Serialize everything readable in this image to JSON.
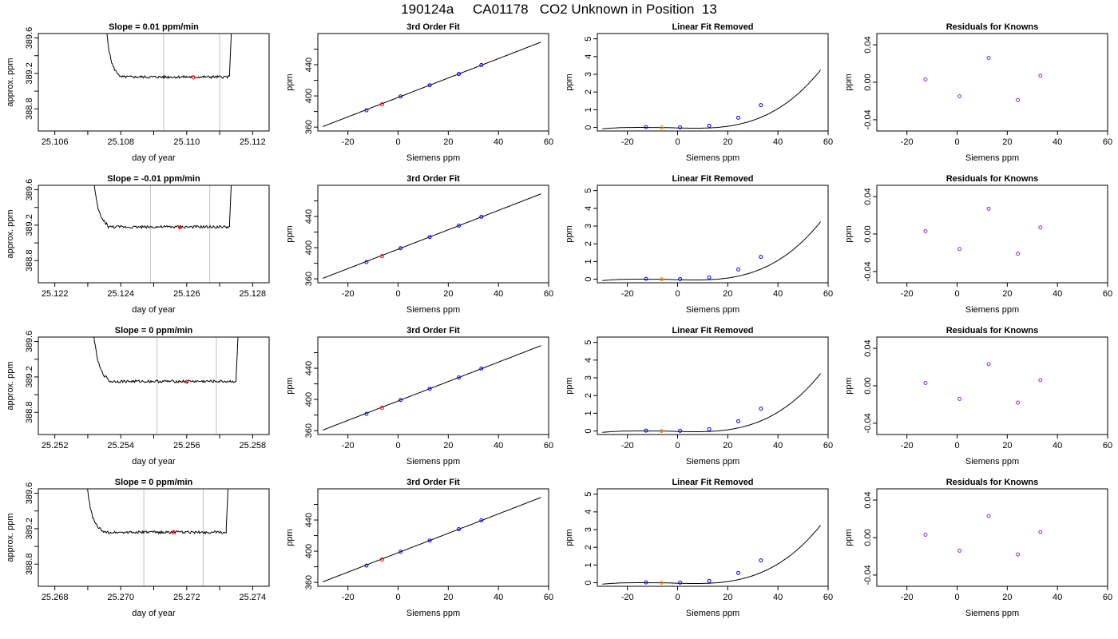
{
  "title": "190124a     CA01178   CO2 Unknown in Position  13",
  "colors": {
    "curve": "#000000",
    "vline": "#c0c0c0",
    "known": "#0000ff",
    "unknown": "#ff0000",
    "unknown_lin": "#ff8c00",
    "resid": "#8a2be2"
  },
  "chart_data": [
    {
      "type": "line",
      "row": 0,
      "col": 0,
      "title": "Slope =  0.01  ppm/min",
      "xlabel": "day of year",
      "ylabel": "approx. ppm",
      "xlim": [
        25.1055,
        25.1125
      ],
      "ylim": [
        388.55,
        389.65
      ],
      "xticks": [
        "25.106",
        "25.108",
        "25.110",
        "25.112"
      ],
      "yticks": [
        "388.8",
        "389.2",
        "389.6"
      ],
      "vlines": [
        25.1093,
        25.111
      ],
      "marker": {
        "x": 25.1102,
        "y": 389.155
      },
      "trace": {
        "x0": 25.1075,
        "x1": 25.1113,
        "level": 389.16,
        "noise": 0.015
      }
    },
    {
      "type": "line",
      "row": 0,
      "col": 1,
      "title": "3rd Order Fit",
      "xlabel": "Siemens ppm",
      "ylabel": "ppm",
      "xlim": [
        -32,
        60
      ],
      "ylim": [
        355,
        480
      ],
      "xticks": [
        "-20",
        "0",
        "20",
        "40",
        "60"
      ],
      "yticks": [
        "360",
        "400",
        "440"
      ],
      "known": {
        "x": [
          -12.6,
          1.0,
          12.6,
          24.2,
          33.2
        ],
        "y": [
          381.5,
          399.3,
          413.7,
          428.2,
          439.7
        ]
      },
      "unknown": {
        "x": -6.4,
        "y": 389.2
      }
    },
    {
      "type": "line",
      "row": 0,
      "col": 2,
      "title": "Linear Fit Removed",
      "xlabel": "Siemens ppm",
      "ylabel": "ppm",
      "xlim": [
        -32,
        60
      ],
      "ylim": [
        -0.2,
        5.3
      ],
      "xticks": [
        "-20",
        "0",
        "20",
        "40",
        "60"
      ],
      "yticks": [
        "0",
        "1",
        "2",
        "3",
        "4",
        "5"
      ],
      "known": {
        "x": [
          -12.6,
          1.0,
          12.6,
          24.2,
          33.2
        ],
        "y": [
          0.02,
          0.01,
          0.1,
          0.55,
          1.26
        ]
      },
      "unknown": {
        "x": -6.4,
        "y": 0.0
      }
    },
    {
      "type": "scatter",
      "row": 0,
      "col": 3,
      "title": "Residuals for Knowns",
      "xlabel": "Siemens ppm",
      "ylabel": "ppm",
      "xlim": [
        -32,
        60
      ],
      "ylim": [
        -0.052,
        0.052
      ],
      "xticks": [
        "-20",
        "0",
        "20",
        "40",
        "60"
      ],
      "yticks": [
        "-0.04",
        "0.00",
        "0.04"
      ],
      "x": [
        -12.6,
        1.0,
        12.6,
        24.2,
        33.2
      ],
      "y": [
        0.003,
        -0.015,
        0.026,
        -0.019,
        0.007
      ]
    },
    {
      "type": "line",
      "row": 1,
      "col": 0,
      "title": "Slope =  -0.01  ppm/min",
      "xlabel": "day of year",
      "ylabel": "approx. ppm",
      "xlim": [
        25.1215,
        25.1285
      ],
      "ylim": [
        388.55,
        389.65
      ],
      "xticks": [
        "25.122",
        "25.124",
        "25.126",
        "25.128"
      ],
      "yticks": [
        "388.8",
        "389.2",
        "389.6"
      ],
      "vlines": [
        25.1249,
        25.1267
      ],
      "marker": {
        "x": 25.1258,
        "y": 389.175
      },
      "trace": {
        "x0": 25.1231,
        "x1": 25.1273,
        "level": 389.18,
        "noise": 0.015
      }
    },
    {
      "type": "line",
      "row": 1,
      "col": 1,
      "title": "3rd Order Fit",
      "xlabel": "Siemens ppm",
      "ylabel": "ppm",
      "xlim": [
        -32,
        60
      ],
      "ylim": [
        355,
        480
      ],
      "xticks": [
        "-20",
        "0",
        "20",
        "40",
        "60"
      ],
      "yticks": [
        "360",
        "400",
        "440"
      ],
      "known": {
        "x": [
          -12.6,
          1.0,
          12.6,
          24.2,
          33.2
        ],
        "y": [
          381.5,
          399.3,
          413.7,
          428.2,
          439.7
        ]
      },
      "unknown": {
        "x": -6.4,
        "y": 389.2
      }
    },
    {
      "type": "line",
      "row": 1,
      "col": 2,
      "title": "Linear Fit Removed",
      "xlabel": "Siemens ppm",
      "ylabel": "ppm",
      "xlim": [
        -32,
        60
      ],
      "ylim": [
        -0.2,
        5.3
      ],
      "xticks": [
        "-20",
        "0",
        "20",
        "40",
        "60"
      ],
      "yticks": [
        "0",
        "1",
        "2",
        "3",
        "4",
        "5"
      ],
      "known": {
        "x": [
          -12.6,
          1.0,
          12.6,
          24.2,
          33.2
        ],
        "y": [
          0.02,
          0.01,
          0.1,
          0.55,
          1.26
        ]
      },
      "unknown": {
        "x": -6.4,
        "y": 0.0
      }
    },
    {
      "type": "scatter",
      "row": 1,
      "col": 3,
      "title": "Residuals for Knowns",
      "xlabel": "Siemens ppm",
      "ylabel": "ppm",
      "xlim": [
        -32,
        60
      ],
      "ylim": [
        -0.052,
        0.052
      ],
      "xticks": [
        "-20",
        "0",
        "20",
        "40",
        "60"
      ],
      "yticks": [
        "-0.04",
        "0.00",
        "0.04"
      ],
      "x": [
        -12.6,
        1.0,
        12.6,
        24.2,
        33.2
      ],
      "y": [
        0.003,
        -0.016,
        0.027,
        -0.021,
        0.007
      ]
    },
    {
      "type": "line",
      "row": 2,
      "col": 0,
      "title": "Slope =  0  ppm/min",
      "xlabel": "day of year",
      "ylabel": "approx. ppm",
      "xlim": [
        25.2515,
        25.2585
      ],
      "ylim": [
        388.55,
        389.65
      ],
      "xticks": [
        "25.252",
        "25.254",
        "25.256",
        "25.258"
      ],
      "yticks": [
        "388.8",
        "389.2",
        "389.6"
      ],
      "vlines": [
        25.2551,
        25.2569
      ],
      "marker": {
        "x": 25.256,
        "y": 389.145
      },
      "trace": {
        "x0": 25.2531,
        "x1": 25.2575,
        "level": 389.15,
        "noise": 0.015
      }
    },
    {
      "type": "line",
      "row": 2,
      "col": 1,
      "title": "3rd Order Fit",
      "xlabel": "Siemens ppm",
      "ylabel": "ppm",
      "xlim": [
        -32,
        60
      ],
      "ylim": [
        355,
        480
      ],
      "xticks": [
        "-20",
        "0",
        "20",
        "40",
        "60"
      ],
      "yticks": [
        "360",
        "400",
        "440"
      ],
      "known": {
        "x": [
          -12.6,
          1.0,
          12.6,
          24.2,
          33.2
        ],
        "y": [
          381.5,
          399.3,
          413.7,
          428.2,
          439.7
        ]
      },
      "unknown": {
        "x": -6.4,
        "y": 389.2
      }
    },
    {
      "type": "line",
      "row": 2,
      "col": 2,
      "title": "Linear Fit Removed",
      "xlabel": "Siemens ppm",
      "ylabel": "ppm",
      "xlim": [
        -32,
        60
      ],
      "ylim": [
        -0.2,
        5.3
      ],
      "xticks": [
        "-20",
        "0",
        "20",
        "40",
        "60"
      ],
      "yticks": [
        "0",
        "1",
        "2",
        "3",
        "4",
        "5"
      ],
      "known": {
        "x": [
          -12.6,
          1.0,
          12.6,
          24.2,
          33.2
        ],
        "y": [
          0.02,
          0.01,
          0.1,
          0.55,
          1.26
        ]
      },
      "unknown": {
        "x": -6.4,
        "y": 0.0
      }
    },
    {
      "type": "scatter",
      "row": 2,
      "col": 3,
      "title": "Residuals for Knowns",
      "xlabel": "Siemens ppm",
      "ylabel": "ppm",
      "xlim": [
        -32,
        60
      ],
      "ylim": [
        -0.052,
        0.052
      ],
      "xticks": [
        "-20",
        "0",
        "20",
        "40",
        "60"
      ],
      "yticks": [
        "-0.04",
        "0.00",
        "0.04"
      ],
      "x": [
        -12.6,
        1.0,
        12.6,
        24.2,
        33.2
      ],
      "y": [
        0.003,
        -0.014,
        0.023,
        -0.018,
        0.006
      ]
    },
    {
      "type": "line",
      "row": 3,
      "col": 0,
      "title": "Slope =  0  ppm/min",
      "xlabel": "day of year",
      "ylabel": "approx. ppm",
      "xlim": [
        25.2675,
        25.2745
      ],
      "ylim": [
        388.55,
        389.65
      ],
      "xticks": [
        "25.268",
        "25.270",
        "25.272",
        "25.274"
      ],
      "yticks": [
        "388.8",
        "389.2",
        "389.6"
      ],
      "vlines": [
        25.2707,
        25.2725
      ],
      "marker": {
        "x": 25.2716,
        "y": 389.16
      },
      "trace": {
        "x0": 25.2689,
        "x1": 25.2732,
        "level": 389.16,
        "noise": 0.015
      }
    },
    {
      "type": "line",
      "row": 3,
      "col": 1,
      "title": "3rd Order Fit",
      "xlabel": "Siemens ppm",
      "ylabel": "ppm",
      "xlim": [
        -32,
        60
      ],
      "ylim": [
        355,
        480
      ],
      "xticks": [
        "-20",
        "0",
        "20",
        "40",
        "60"
      ],
      "yticks": [
        "360",
        "400",
        "440"
      ],
      "known": {
        "x": [
          -12.6,
          1.0,
          12.6,
          24.2,
          33.2
        ],
        "y": [
          381.5,
          399.3,
          413.7,
          428.2,
          439.7
        ]
      },
      "unknown": {
        "x": -6.4,
        "y": 389.2
      }
    },
    {
      "type": "line",
      "row": 3,
      "col": 2,
      "title": "Linear Fit Removed",
      "xlabel": "Siemens ppm",
      "ylabel": "ppm",
      "xlim": [
        -32,
        60
      ],
      "ylim": [
        -0.2,
        5.3
      ],
      "xticks": [
        "-20",
        "0",
        "20",
        "40",
        "60"
      ],
      "yticks": [
        "0",
        "1",
        "2",
        "3",
        "4",
        "5"
      ],
      "known": {
        "x": [
          -12.6,
          1.0,
          12.6,
          24.2,
          33.2
        ],
        "y": [
          0.02,
          0.01,
          0.1,
          0.55,
          1.26
        ]
      },
      "unknown": {
        "x": -6.4,
        "y": 0.0
      }
    },
    {
      "type": "scatter",
      "row": 3,
      "col": 3,
      "title": "Residuals for Knowns",
      "xlabel": "Siemens ppm",
      "ylabel": "ppm",
      "xlim": [
        -32,
        60
      ],
      "ylim": [
        -0.052,
        0.052
      ],
      "xticks": [
        "-20",
        "0",
        "20",
        "40",
        "60"
      ],
      "yticks": [
        "-0.04",
        "0.00",
        "0.04"
      ],
      "x": [
        -12.6,
        1.0,
        12.6,
        24.2,
        33.2
      ],
      "y": [
        0.003,
        -0.014,
        0.023,
        -0.018,
        0.006
      ]
    }
  ]
}
